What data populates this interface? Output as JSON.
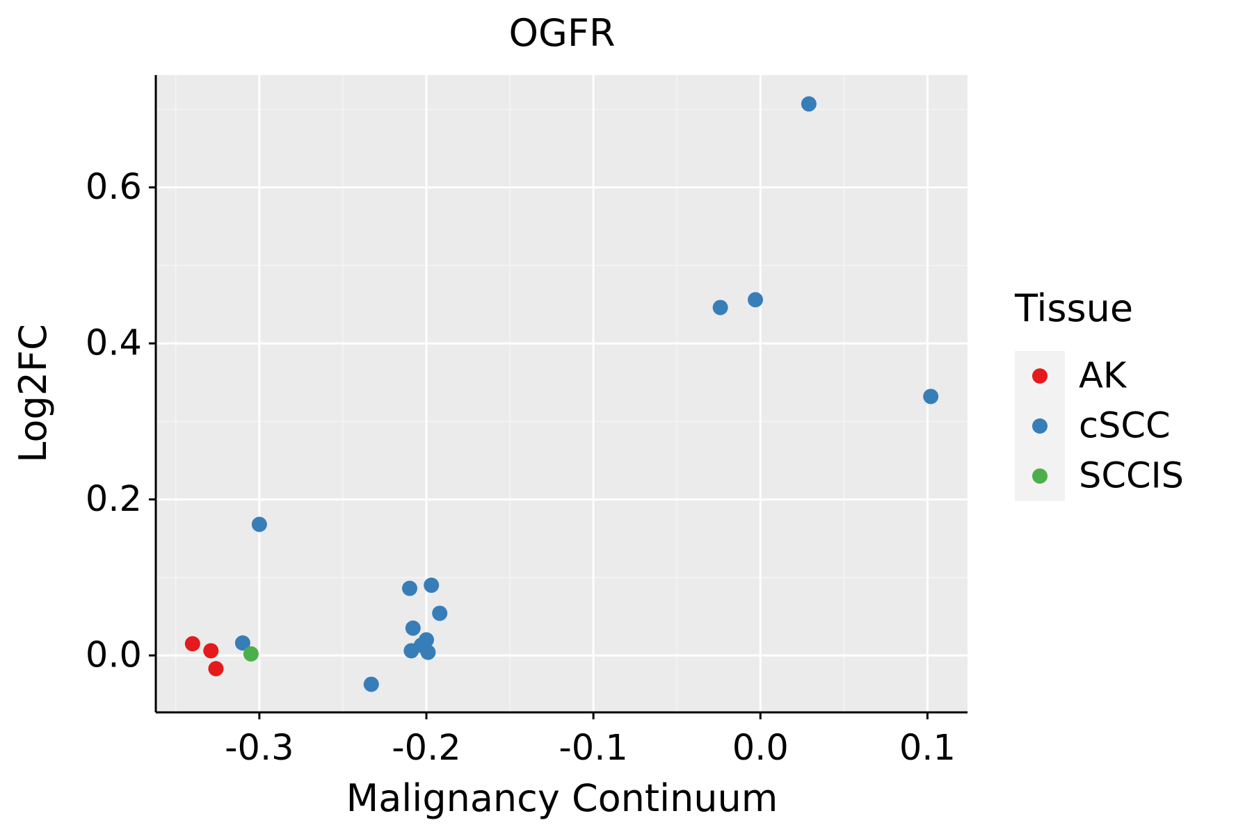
{
  "chart_data": {
    "type": "scatter",
    "title": "OGFR",
    "xlabel": "Malignancy Continuum",
    "ylabel": "Log2FC",
    "xlim": [
      -0.362,
      0.124
    ],
    "ylim": [
      -0.073,
      0.744
    ],
    "x_ticks": [
      -0.3,
      -0.2,
      -0.1,
      0.0,
      0.1
    ],
    "x_tick_labels": [
      "-0.3",
      "-0.2",
      "-0.1",
      "0.0",
      "0.1"
    ],
    "y_ticks": [
      0.0,
      0.2,
      0.4,
      0.6
    ],
    "y_tick_labels": [
      "0.0",
      "0.2",
      "0.4",
      "0.6"
    ],
    "grid": true,
    "legend": {
      "title": "Tissue",
      "position": "right",
      "entries": [
        {
          "label": "AK",
          "color": "#e41a1c"
        },
        {
          "label": "cSCC",
          "color": "#377eb8"
        },
        {
          "label": "SCCIS",
          "color": "#4daf4a"
        }
      ]
    },
    "series": [
      {
        "name": "AK",
        "color": "#e41a1c",
        "points": [
          {
            "x": -0.34,
            "y": 0.015
          },
          {
            "x": -0.329,
            "y": 0.006
          },
          {
            "x": -0.326,
            "y": -0.017
          }
        ]
      },
      {
        "name": "cSCC",
        "color": "#377eb8",
        "points": [
          {
            "x": -0.31,
            "y": 0.016
          },
          {
            "x": -0.3,
            "y": 0.168
          },
          {
            "x": -0.233,
            "y": -0.037
          },
          {
            "x": -0.21,
            "y": 0.086
          },
          {
            "x": -0.209,
            "y": 0.006
          },
          {
            "x": -0.208,
            "y": 0.035
          },
          {
            "x": -0.203,
            "y": 0.013
          },
          {
            "x": -0.2,
            "y": 0.02
          },
          {
            "x": -0.199,
            "y": 0.004
          },
          {
            "x": -0.197,
            "y": 0.09
          },
          {
            "x": -0.192,
            "y": 0.054
          },
          {
            "x": -0.024,
            "y": 0.446
          },
          {
            "x": -0.003,
            "y": 0.456
          },
          {
            "x": 0.029,
            "y": 0.707
          },
          {
            "x": 0.102,
            "y": 0.332
          }
        ]
      },
      {
        "name": "SCCIS",
        "color": "#4daf4a",
        "points": [
          {
            "x": -0.305,
            "y": 0.002
          }
        ]
      }
    ]
  },
  "colors": {
    "panel_background": "#ebebeb",
    "grid_major": "#ffffff",
    "grid_minor": "#f5f5f5",
    "axis_line": "#000000",
    "legend_key_background": "#f2f2f2"
  }
}
